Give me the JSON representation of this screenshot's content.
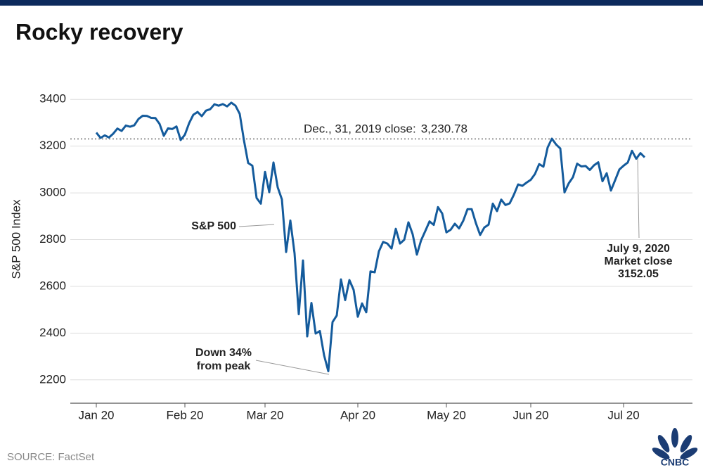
{
  "chart_data": {
    "type": "line",
    "title": "Rocky recovery",
    "y_label": "S&P 500 Index",
    "categories": [
      "Jan 20",
      null,
      null,
      null,
      null,
      null,
      null,
      null,
      null,
      null,
      null,
      null,
      null,
      null,
      null,
      null,
      null,
      null,
      null,
      null,
      null,
      "Feb 20",
      null,
      null,
      null,
      null,
      null,
      null,
      null,
      null,
      null,
      null,
      null,
      null,
      null,
      null,
      null,
      null,
      null,
      null,
      "Mar 20",
      null,
      null,
      null,
      null,
      null,
      null,
      null,
      null,
      null,
      null,
      null,
      null,
      null,
      null,
      null,
      null,
      null,
      null,
      null,
      null,
      null,
      "Apr 20",
      null,
      null,
      null,
      null,
      null,
      null,
      null,
      null,
      null,
      null,
      null,
      null,
      null,
      null,
      null,
      null,
      null,
      null,
      null,
      null,
      "May 20",
      null,
      null,
      null,
      null,
      null,
      null,
      null,
      null,
      null,
      null,
      null,
      null,
      null,
      null,
      null,
      null,
      null,
      null,
      null,
      "Jun 20",
      null,
      null,
      null,
      null,
      null,
      null,
      null,
      null,
      null,
      null,
      null,
      null,
      null,
      null,
      null,
      null,
      null,
      null,
      null,
      null,
      null,
      "Jul 20",
      null,
      null,
      null,
      null,
      null
    ],
    "series": [
      {
        "name": "S&P 500",
        "color": "#145b9c",
        "values": [
          3258,
          3235,
          3246,
          3237,
          3253,
          3275,
          3265,
          3288,
          3283,
          3289,
          3316,
          3330,
          3329,
          3321,
          3320,
          3295,
          3244,
          3276,
          3273,
          3284,
          3226,
          3249,
          3298,
          3334,
          3346,
          3328,
          3352,
          3358,
          3379,
          3373,
          3380,
          3370,
          3386,
          3373,
          3338,
          3225,
          3128,
          3116,
          2978,
          2954,
          3090,
          3003,
          3130,
          3024,
          2972,
          2747,
          2882,
          2741,
          2481,
          2711,
          2386,
          2529,
          2398,
          2409,
          2305,
          2237,
          2447,
          2475,
          2630,
          2541,
          2627,
          2585,
          2470,
          2527,
          2489,
          2664,
          2660,
          2750,
          2790,
          2783,
          2762,
          2846,
          2783,
          2799,
          2874,
          2823,
          2736,
          2797,
          2837,
          2878,
          2863,
          2939,
          2912,
          2831,
          2842,
          2868,
          2848,
          2881,
          2930,
          2930,
          2870,
          2820,
          2852,
          2864,
          2954,
          2922,
          2971,
          2948,
          2955,
          2992,
          3036,
          3030,
          3044,
          3056,
          3081,
          3123,
          3112,
          3194,
          3232,
          3207,
          3190,
          3002,
          3041,
          3067,
          3125,
          3113,
          3115,
          3098,
          3118,
          3131,
          3050,
          3084,
          3010,
          3054,
          3100,
          3116,
          3130,
          3180,
          3146,
          3170,
          3152
        ]
      }
    ],
    "ylim": [
      2100,
      3500
    ],
    "yticks": [
      2200,
      2400,
      2600,
      2800,
      3000,
      3200,
      3400
    ],
    "grid": true,
    "reference": {
      "value": 3230.78,
      "label": "Dec., 31, 2019 close:",
      "value_label": "3,230.78"
    },
    "annotations": {
      "trough": [
        "Down 34%",
        "from peak"
      ],
      "last": [
        "July 9, 2020",
        "Market close",
        "3152.05"
      ]
    },
    "source": "SOURCE: FactSet",
    "logo": "CNBC"
  }
}
